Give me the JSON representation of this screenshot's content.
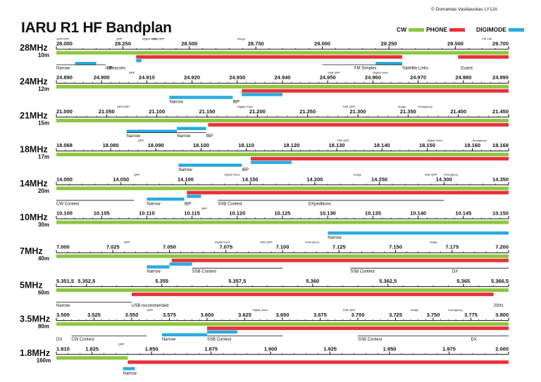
{
  "title": "IARU R1 HF Bandplan",
  "credit": "© Domantas Vasiliauskas LY1JA",
  "colors": {
    "cw": "#8dc63f",
    "phone": "#e8313a",
    "digi": "#29abe2",
    "line": "#111111"
  },
  "legend": [
    {
      "label": "CW",
      "color": "#8dc63f"
    },
    {
      "label": "PHONE",
      "color": "#e8313a"
    },
    {
      "label": "DIGIMODE",
      "color": "#29abe2"
    }
  ],
  "bands": [
    {
      "name": "28MHz",
      "sub": "10m",
      "lo": 28.0,
      "hi": 29.7,
      "minorStep": 0.05,
      "ticks": [
        [
          28.0,
          "28.000"
        ],
        [
          28.25,
          "28.250"
        ],
        [
          28.5,
          "28.500"
        ],
        [
          28.75,
          "28.750"
        ],
        [
          29.0,
          "29.000"
        ],
        [
          29.25,
          "29.250"
        ],
        [
          29.5,
          "29.500"
        ],
        [
          29.7,
          "29.700"
        ]
      ],
      "cw": [
        [
          28.0,
          29.7
        ]
      ],
      "phone": [
        [
          28.3,
          29.3
        ],
        [
          29.51,
          29.7
        ]
      ],
      "digi": [
        [
          28.07,
          28.15
        ],
        [
          28.3,
          28.32
        ],
        [
          29.2,
          29.3
        ]
      ],
      "brackets": [
        [
          28.0,
          28.185
        ],
        [
          29.0,
          29.3
        ]
      ],
      "small": [
        [
          28.0,
          "QRP/QRP"
        ],
        [
          28.225,
          "QRP"
        ],
        [
          28.322,
          "Digital Voice"
        ],
        [
          28.36,
          "SSB QRP"
        ],
        [
          28.68,
          "Image"
        ],
        [
          29.6,
          "FM Call"
        ]
      ],
      "labels": [
        [
          28.0,
          "Narrow"
        ],
        [
          28.185,
          "IBP"
        ],
        [
          28.198,
          "Beacons"
        ],
        [
          29.12,
          "FM Simplex"
        ],
        [
          29.3,
          "Satellite Links"
        ],
        [
          29.52,
          "Guard"
        ]
      ]
    },
    {
      "name": "24MHz",
      "sub": "12m",
      "lo": 24.89,
      "hi": 24.99,
      "minorStep": 0.002,
      "ticks": [
        [
          24.89,
          "24.890"
        ],
        [
          24.9,
          "24.900"
        ],
        [
          24.91,
          "24.910"
        ],
        [
          24.92,
          "24.920"
        ],
        [
          24.93,
          "24.930"
        ],
        [
          24.94,
          "24.940"
        ],
        [
          24.95,
          "24.950"
        ],
        [
          24.96,
          "24.960"
        ],
        [
          24.97,
          "24.970"
        ],
        [
          24.98,
          "24.980"
        ],
        [
          24.99,
          "24.990"
        ]
      ],
      "cw": [
        [
          24.89,
          24.99
        ]
      ],
      "phone": [
        [
          24.931,
          24.99
        ]
      ],
      "digi": [
        [
          24.915,
          24.929
        ],
        [
          24.931,
          24.94
        ]
      ],
      "brackets": [],
      "small": [
        [
          24.906,
          "QRP"
        ],
        [
          24.95,
          "SSB QRP"
        ],
        [
          24.96,
          "Digital Voice"
        ]
      ],
      "labels": [
        [
          24.915,
          "Narrow"
        ],
        [
          24.929,
          "IBP"
        ]
      ]
    },
    {
      "name": "21MHz",
      "sub": "15m",
      "lo": 21.0,
      "hi": 21.45,
      "minorStep": 0.01,
      "ticks": [
        [
          21.0,
          "21.000"
        ],
        [
          21.05,
          "21.050"
        ],
        [
          21.1,
          "21.100"
        ],
        [
          21.15,
          "21.150"
        ],
        [
          21.2,
          "21.200"
        ],
        [
          21.25,
          "21.250"
        ],
        [
          21.3,
          "21.300"
        ],
        [
          21.35,
          "21.350"
        ],
        [
          21.4,
          "21.400"
        ],
        [
          21.45,
          "21.450"
        ]
      ],
      "cw": [
        [
          21.0,
          21.45
        ]
      ],
      "phone": [
        [
          21.151,
          21.45
        ]
      ],
      "digi": [
        [
          21.07,
          21.12
        ],
        [
          21.12,
          21.149
        ]
      ],
      "brackets": [
        [
          21.07,
          21.149
        ]
      ],
      "small": [
        [
          21.06,
          "QRP/QRP"
        ],
        [
          21.18,
          "Digital Voice"
        ],
        [
          21.285,
          "SSB QRP"
        ],
        [
          21.34,
          "Image"
        ],
        [
          21.36,
          "Emergency"
        ]
      ],
      "labels": [
        [
          21.07,
          "Narrow"
        ],
        [
          21.12,
          "Narrow"
        ],
        [
          21.149,
          "IBP"
        ]
      ]
    },
    {
      "name": "18MHz",
      "sub": "17m",
      "lo": 18.068,
      "hi": 18.168,
      "minorStep": 0.002,
      "ticks": [
        [
          18.068,
          "18.068"
        ],
        [
          18.08,
          "18.080"
        ],
        [
          18.09,
          "18.090"
        ],
        [
          18.1,
          "18.100"
        ],
        [
          18.11,
          "18.110"
        ],
        [
          18.12,
          "18.120"
        ],
        [
          18.13,
          "18.130"
        ],
        [
          18.14,
          "18.140"
        ],
        [
          18.15,
          "18.150"
        ],
        [
          18.16,
          "18.160"
        ],
        [
          18.168,
          "18.168"
        ]
      ],
      "cw": [
        [
          18.068,
          18.168
        ]
      ],
      "phone": [
        [
          18.111,
          18.168
        ]
      ],
      "digi": [
        [
          18.095,
          18.109
        ],
        [
          18.111,
          18.12
        ]
      ],
      "brackets": [],
      "small": [
        [
          18.086,
          "QRP"
        ],
        [
          18.13,
          "SSB QRP"
        ],
        [
          18.15,
          "Digital Voice"
        ],
        [
          18.16,
          "Emergency"
        ]
      ],
      "labels": [
        [
          18.095,
          "Narrow"
        ],
        [
          18.109,
          "IBP"
        ]
      ]
    },
    {
      "name": "14MHz",
      "sub": "20m",
      "lo": 14.0,
      "hi": 14.35,
      "minorStep": 0.01,
      "ticks": [
        [
          14.0,
          "14.000"
        ],
        [
          14.05,
          "14.050"
        ],
        [
          14.1,
          "14.100"
        ],
        [
          14.15,
          "14.150"
        ],
        [
          14.2,
          "14.200"
        ],
        [
          14.25,
          "14.250"
        ],
        [
          14.3,
          "14.300"
        ],
        [
          14.35,
          "14.350"
        ]
      ],
      "cw": [
        [
          14.0,
          14.35
        ]
      ],
      "phone": [
        [
          14.101,
          14.35
        ]
      ],
      "digi": [
        [
          14.07,
          14.099
        ],
        [
          14.101,
          14.112
        ]
      ],
      "brackets": [
        [
          14.0,
          14.06
        ],
        [
          14.125,
          14.3
        ]
      ],
      "small": [
        [
          14.06,
          "QRP"
        ],
        [
          14.13,
          "Digital Voice"
        ],
        [
          14.23,
          "Image"
        ],
        [
          14.285,
          "SSB QRP"
        ],
        [
          14.3,
          "Emergency"
        ]
      ],
      "labels": [
        [
          14.0,
          "CW Contest"
        ],
        [
          14.07,
          "Narrow"
        ],
        [
          14.099,
          "IBP"
        ],
        [
          14.125,
          "SSB Contest"
        ],
        [
          14.195,
          "DXpeditions"
        ]
      ]
    },
    {
      "name": "10MHz",
      "sub": "30m",
      "lo": 10.1,
      "hi": 10.15,
      "minorStep": 0.001,
      "ticks": [
        [
          10.1,
          "10.100"
        ],
        [
          10.105,
          "10.105"
        ],
        [
          10.11,
          "10.110"
        ],
        [
          10.115,
          "10.115"
        ],
        [
          10.12,
          "10.120"
        ],
        [
          10.125,
          "10.125"
        ],
        [
          10.13,
          "10.130"
        ],
        [
          10.135,
          "10.135"
        ],
        [
          10.14,
          "10.140"
        ],
        [
          10.145,
          "10.145"
        ],
        [
          10.15,
          "10.150"
        ]
      ],
      "cw": [
        [
          10.1,
          10.15
        ]
      ],
      "phone": [],
      "digi": [
        [
          10.13,
          10.15
        ]
      ],
      "brackets": [],
      "small": [
        [
          10.116,
          "QRP"
        ]
      ],
      "labels": [
        [
          10.13,
          "Narrow"
        ]
      ]
    },
    {
      "name": "7MHz",
      "sub": "40m",
      "lo": 7.0,
      "hi": 7.2,
      "minorStep": 0.005,
      "ticks": [
        [
          7.0,
          "7.000"
        ],
        [
          7.025,
          "7.025"
        ],
        [
          7.05,
          "7.050"
        ],
        [
          7.075,
          "7.075"
        ],
        [
          7.1,
          "7.100"
        ],
        [
          7.125,
          "7.125"
        ],
        [
          7.15,
          "7.150"
        ],
        [
          7.175,
          "7.175"
        ],
        [
          7.2,
          "7.200"
        ]
      ],
      "cw": [
        [
          7.0,
          7.2
        ]
      ],
      "phone": [
        [
          7.051,
          7.2
        ]
      ],
      "digi": [
        [
          7.04,
          7.05
        ],
        [
          7.05,
          7.06
        ]
      ],
      "brackets": [
        [
          7.06,
          7.1
        ],
        [
          7.13,
          7.2
        ]
      ],
      "small": [
        [
          7.03,
          "QRP"
        ],
        [
          7.07,
          "Digital Voice"
        ],
        [
          7.09,
          "SSB QRP"
        ],
        [
          7.11,
          "Emergency"
        ],
        [
          7.165,
          "Image"
        ]
      ],
      "labels": [
        [
          7.04,
          "Narrow"
        ],
        [
          7.06,
          "SSB Contest"
        ],
        [
          7.13,
          "SSB Contest"
        ],
        [
          7.175,
          "DX"
        ]
      ]
    },
    {
      "name": "5MHz",
      "sub": "60m",
      "lo": 5.3515,
      "hi": 5.3665,
      "minorStep": 0.0005,
      "ticks": [
        [
          5.3515,
          "5.351,5"
        ],
        [
          5.3525,
          "5.352,5"
        ],
        [
          5.355,
          "5.355"
        ],
        [
          5.3575,
          "5.357,5"
        ],
        [
          5.36,
          "5.360"
        ],
        [
          5.3625,
          "5.362,5"
        ],
        [
          5.365,
          "5.365"
        ],
        [
          5.3665,
          "5.366,5"
        ]
      ],
      "cw": [
        [
          5.3515,
          5.3665
        ]
      ],
      "phone": [
        [
          5.354,
          5.366
        ]
      ],
      "digi": [],
      "brackets": [
        [
          5.3515,
          5.354
        ]
      ],
      "small": [],
      "labels": [
        [
          5.3515,
          "Narrow"
        ],
        [
          5.354,
          "USB recommended"
        ],
        [
          5.366,
          "20Hz"
        ]
      ]
    },
    {
      "name": "3.5MHz",
      "sub": "80m",
      "lo": 3.5,
      "hi": 3.8,
      "minorStep": 0.005,
      "ticks": [
        [
          3.5,
          "3.500"
        ],
        [
          3.525,
          "3.525"
        ],
        [
          3.55,
          "3.550"
        ],
        [
          3.575,
          "3.575"
        ],
        [
          3.6,
          "3.600"
        ],
        [
          3.625,
          "3.625"
        ],
        [
          3.65,
          "3.650"
        ],
        [
          3.675,
          "3.675"
        ],
        [
          3.7,
          "3.700"
        ],
        [
          3.725,
          "3.725"
        ],
        [
          3.75,
          "3.750"
        ],
        [
          3.775,
          "3.775"
        ],
        [
          3.8,
          "3.800"
        ]
      ],
      "cw": [
        [
          3.5,
          3.8
        ]
      ],
      "phone": [
        [
          3.6,
          3.8
        ]
      ],
      "digi": [
        [
          3.57,
          3.6
        ],
        [
          3.6,
          3.62
        ]
      ],
      "brackets": [
        [
          3.51,
          3.56
        ],
        [
          3.6,
          3.65
        ],
        [
          3.7,
          3.8
        ]
      ],
      "small": [
        [
          3.56,
          "QRP"
        ],
        [
          3.63,
          "Digital Voice"
        ],
        [
          3.69,
          "SSB QRP"
        ],
        [
          3.735,
          "Image"
        ],
        [
          3.76,
          "Emergency"
        ]
      ],
      "labels": [
        [
          3.5,
          "DX"
        ],
        [
          3.51,
          "CW Contest"
        ],
        [
          3.57,
          "Narrow"
        ],
        [
          3.6,
          "SSB Contest"
        ],
        [
          3.7,
          "SSB Contest"
        ],
        [
          3.775,
          "DX"
        ]
      ]
    },
    {
      "name": "1.8MHz",
      "sub": "160m",
      "lo": 1.81,
      "hi": 2.0,
      "minorStep": 0.005,
      "ticks": [
        [
          1.81,
          "1.810"
        ],
        [
          1.825,
          "1.825"
        ],
        [
          1.85,
          "1.850"
        ],
        [
          1.875,
          "1.875"
        ],
        [
          1.9,
          "1.900"
        ],
        [
          1.925,
          "1.925"
        ],
        [
          1.95,
          "1.950"
        ],
        [
          1.975,
          "1.975"
        ],
        [
          2.0,
          "2.000"
        ]
      ],
      "cw": [
        [
          1.81,
          1.84
        ]
      ],
      "phone": [
        [
          1.84,
          2.0
        ]
      ],
      "digi": [
        [
          1.838,
          1.843
        ]
      ],
      "brackets": [],
      "small": [
        [
          1.836,
          "QRP"
        ]
      ],
      "labels": [
        [
          1.838,
          "Narrow"
        ]
      ]
    }
  ]
}
